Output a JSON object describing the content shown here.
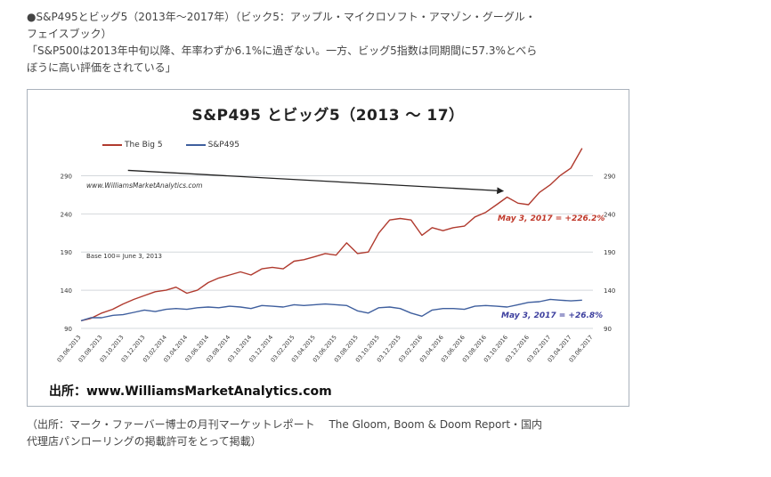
{
  "intro": {
    "line1": "●S&P495とビッグ5（2013年〜2017年）（ビック5：アップル・マイクロソフト・アマゾン・グーグル・",
    "line2": "フェイスブック）",
    "line3": "「S&P500は2013年中旬以降、年率わずか6.1%に過ぎない。一方、ビッグ5指数は同期間に57.3%とべら",
    "line4": "ぼうに高い評価をされている」"
  },
  "chart": {
    "title": "S&P495 とビッグ5（2013 〜 17）",
    "watermark": "www.WilliamsMarketAnalytics.com",
    "base_note": "Base 100= June 3, 2013",
    "big5_label": "May 3, 2017 = +226.2%",
    "sp495_label": "May 3, 2017 = +26.8%",
    "source": "出所：www.WilliamsMarketAnalytics.com"
  },
  "chart_data": {
    "type": "line",
    "legend": {
      "placement": "top-left",
      "entries": [
        "The Big 5",
        "S&P495"
      ]
    },
    "yticks": [
      90,
      140,
      190,
      240,
      290
    ],
    "ylim": [
      90,
      315
    ],
    "xlim": [
      "2013-06-03",
      "2017-06-03"
    ],
    "xticks": [
      "03.06.2013",
      "03.08.2013",
      "03.10.2013",
      "03.12.2013",
      "03.02.2014",
      "03.04.2014",
      "03.06.2014",
      "03.08.2014",
      "03.10.2014",
      "03.12.2014",
      "03.02.2015",
      "03.04.2015",
      "03.06.2015",
      "03.08.2015",
      "03.10.2015",
      "03.12.2015",
      "03.02.2016",
      "03.04.2016",
      "03.06.2016",
      "03.08.2016",
      "03.10.2016",
      "03.12.2016",
      "03.02.2017",
      "03.04.2017",
      "03.06.2017"
    ],
    "grid": true,
    "colors": {
      "big5": "#b03a2e",
      "sp495": "#3f5f9e",
      "arrow": "#222222"
    },
    "series": [
      {
        "name": "The Big 5",
        "points": [
          [
            "2013-06-03",
            100
          ],
          [
            "2013-07-01",
            103
          ],
          [
            "2013-08-01",
            110
          ],
          [
            "2013-09-01",
            115
          ],
          [
            "2013-10-01",
            122
          ],
          [
            "2013-11-01",
            128
          ],
          [
            "2013-12-01",
            133
          ],
          [
            "2014-01-01",
            138
          ],
          [
            "2014-02-01",
            140
          ],
          [
            "2014-03-01",
            144
          ],
          [
            "2014-04-01",
            136
          ],
          [
            "2014-05-01",
            140
          ],
          [
            "2014-06-01",
            150
          ],
          [
            "2014-07-01",
            156
          ],
          [
            "2014-08-01",
            160
          ],
          [
            "2014-09-01",
            164
          ],
          [
            "2014-10-01",
            160
          ],
          [
            "2014-11-01",
            168
          ],
          [
            "2014-12-01",
            170
          ],
          [
            "2015-01-01",
            168
          ],
          [
            "2015-02-01",
            178
          ],
          [
            "2015-03-01",
            180
          ],
          [
            "2015-04-01",
            184
          ],
          [
            "2015-05-01",
            188
          ],
          [
            "2015-06-01",
            186
          ],
          [
            "2015-07-01",
            202
          ],
          [
            "2015-08-01",
            188
          ],
          [
            "2015-09-01",
            190
          ],
          [
            "2015-10-01",
            215
          ],
          [
            "2015-11-01",
            232
          ],
          [
            "2015-12-01",
            234
          ],
          [
            "2016-01-01",
            232
          ],
          [
            "2016-02-01",
            212
          ],
          [
            "2016-03-01",
            222
          ],
          [
            "2016-04-01",
            218
          ],
          [
            "2016-05-01",
            222
          ],
          [
            "2016-06-01",
            224
          ],
          [
            "2016-07-01",
            236
          ],
          [
            "2016-08-01",
            242
          ],
          [
            "2016-09-01",
            252
          ],
          [
            "2016-10-01",
            262
          ],
          [
            "2016-11-01",
            254
          ],
          [
            "2016-12-01",
            252
          ],
          [
            "2017-01-01",
            268
          ],
          [
            "2017-02-01",
            278
          ],
          [
            "2017-03-01",
            290
          ],
          [
            "2017-04-01",
            300
          ],
          [
            "2017-05-03",
            326
          ]
        ]
      },
      {
        "name": "S&P495",
        "points": [
          [
            "2013-06-03",
            100
          ],
          [
            "2013-07-01",
            104
          ],
          [
            "2013-08-01",
            104
          ],
          [
            "2013-09-01",
            107
          ],
          [
            "2013-10-01",
            108
          ],
          [
            "2013-11-01",
            111
          ],
          [
            "2013-12-01",
            114
          ],
          [
            "2014-01-01",
            112
          ],
          [
            "2014-02-01",
            115
          ],
          [
            "2014-03-01",
            116
          ],
          [
            "2014-04-01",
            115
          ],
          [
            "2014-05-01",
            117
          ],
          [
            "2014-06-01",
            118
          ],
          [
            "2014-07-01",
            117
          ],
          [
            "2014-08-01",
            119
          ],
          [
            "2014-09-01",
            118
          ],
          [
            "2014-10-01",
            116
          ],
          [
            "2014-11-01",
            120
          ],
          [
            "2014-12-01",
            119
          ],
          [
            "2015-01-01",
            118
          ],
          [
            "2015-02-01",
            121
          ],
          [
            "2015-03-01",
            120
          ],
          [
            "2015-04-01",
            121
          ],
          [
            "2015-05-01",
            122
          ],
          [
            "2015-06-01",
            121
          ],
          [
            "2015-07-01",
            120
          ],
          [
            "2015-08-01",
            113
          ],
          [
            "2015-09-01",
            110
          ],
          [
            "2015-10-01",
            117
          ],
          [
            "2015-11-01",
            118
          ],
          [
            "2015-12-01",
            116
          ],
          [
            "2016-01-01",
            110
          ],
          [
            "2016-02-01",
            106
          ],
          [
            "2016-03-01",
            114
          ],
          [
            "2016-04-01",
            116
          ],
          [
            "2016-05-01",
            116
          ],
          [
            "2016-06-01",
            115
          ],
          [
            "2016-07-01",
            119
          ],
          [
            "2016-08-01",
            120
          ],
          [
            "2016-09-01",
            119
          ],
          [
            "2016-10-01",
            118
          ],
          [
            "2016-11-01",
            121
          ],
          [
            "2016-12-01",
            124
          ],
          [
            "2017-01-01",
            125
          ],
          [
            "2017-02-01",
            128
          ],
          [
            "2017-03-01",
            127
          ],
          [
            "2017-04-01",
            126
          ],
          [
            "2017-05-03",
            127
          ]
        ]
      }
    ],
    "annotation": {
      "type": "arrow",
      "from": [
        "2013-10-15",
        297
      ],
      "to": [
        "2016-09-20",
        270
      ]
    }
  },
  "outro": {
    "line1": "（出所：マーク・ファーバー博士の月刊マーケットレポート　 The Gloom, Boom & Doom Report・国内",
    "line2": "代理店パンローリングの掲載許可をとって掲載）"
  }
}
